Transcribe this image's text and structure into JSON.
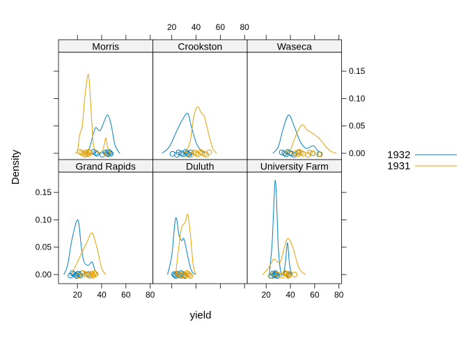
{
  "chart_data": {
    "type": "density",
    "xlabel": "yield",
    "ylabel": "Density",
    "xlim": [
      4.4,
      82.2
    ],
    "ylim": [
      -0.012,
      0.19
    ],
    "x_ticks": [
      20,
      40,
      60,
      80
    ],
    "x_tick_labels": [
      "20",
      "40",
      "60",
      "80"
    ],
    "y_ticks": [
      0.0,
      0.05,
      0.1,
      0.15
    ],
    "y_tick_labels": [
      "0.00",
      "0.05",
      "0.10",
      "0.15"
    ],
    "legend": {
      "placement": "right",
      "entries": [
        {
          "label": "1932",
          "color": "#0080c0"
        },
        {
          "label": "1931",
          "color": "#e69f00"
        }
      ]
    },
    "panels": [
      {
        "name": "Morris",
        "series": [
          {
            "name": "1932",
            "yield": [
              33.2,
              35.1,
              36.0,
              40.5,
              43.2,
              44.2,
              45.0,
              46.0,
              46.8,
              47.5
            ],
            "density_x": [
              27,
              30,
              33,
              35,
              37,
              39,
              42,
              45,
              48,
              51,
              55
            ],
            "density_y": [
              0,
              0.01,
              0.035,
              0.047,
              0.043,
              0.042,
              0.058,
              0.07,
              0.05,
              0.015,
              0
            ]
          },
          {
            "name": "1931",
            "yield": [
              21.9,
              23.5,
              25.0,
              26.2,
              27.0,
              27.8,
              28.6,
              29.5,
              30.2,
              44.5
            ],
            "density_x": [
              18,
              20,
              22,
              24,
              26,
              29,
              31,
              33,
              36,
              40,
              42,
              43.5,
              45,
              48
            ],
            "density_y": [
              0,
              0.005,
              0.035,
              0.05,
              0.1,
              0.144,
              0.09,
              0.02,
              0.003,
              0.003,
              0.015,
              0.028,
              0.01,
              0
            ]
          }
        ]
      },
      {
        "name": "Crookston",
        "series": [
          {
            "name": "1932",
            "yield": [
              20.6,
              24.2,
              25.6,
              28.0,
              29.5,
              31.2,
              32.5,
              33.5,
              34.4,
              35.7
            ],
            "density_x": [
              12,
              18,
              23.5,
              28,
              33,
              36,
              40,
              44,
              47
            ],
            "density_y": [
              0,
              0.012,
              0.038,
              0.058,
              0.073,
              0.05,
              0.02,
              0.005,
              0
            ]
          },
          {
            "name": "1931",
            "yield": [
              31.5,
              36.0,
              38.5,
              40.0,
              41.5,
              43.5,
              45.0,
              47.0,
              48.5,
              50.8
            ],
            "density_x": [
              31,
              35,
              38,
              41.2,
              44,
              47,
              51,
              54,
              57
            ],
            "density_y": [
              0,
              0.02,
              0.065,
              0.085,
              0.075,
              0.066,
              0.03,
              0.008,
              0
            ]
          }
        ]
      },
      {
        "name": "Waseca",
        "series": [
          {
            "name": "1932",
            "yield": [
              32.8,
              35.0,
              36.5,
              37.8,
              39.5,
              41.0,
              43.0,
              46.5,
              58.3,
              63.8
            ],
            "density_x": [
              25.5,
              30,
              34,
              38.6,
              43,
              48,
              53,
              58.7,
              62,
              66
            ],
            "density_y": [
              0,
              0.012,
              0.045,
              0.07,
              0.05,
              0.022,
              0.009,
              0.014,
              0.006,
              0
            ]
          },
          {
            "name": "1931",
            "yield": [
              37.6,
              44.0,
              46.0,
              47.5,
              49.0,
              50.5,
              54.5,
              56.0,
              58.5,
              64.5
            ],
            "density_x": [
              36,
              40,
              44,
              49.5,
              54,
              60,
              65,
              70,
              74,
              78
            ],
            "density_y": [
              0,
              0.006,
              0.03,
              0.052,
              0.042,
              0.034,
              0.024,
              0.01,
              0.003,
              0
            ]
          }
        ]
      },
      {
        "name": "Grand Rapids",
        "series": [
          {
            "name": "1932",
            "yield": [
              14.2,
              15.8,
              17.0,
              18.5,
              19.5,
              20.5,
              21.5,
              22.5,
              24.0,
              29.0
            ],
            "density_x": [
              8.8,
              12,
              15.5,
              20.3,
              23,
              25.3,
              29,
              32,
              34.5,
              36.8
            ],
            "density_y": [
              0,
              0.018,
              0.064,
              0.1,
              0.055,
              0.024,
              0.017,
              0.023,
              0.008,
              0
            ]
          },
          {
            "name": "1931",
            "yield": [
              21.0,
              24.5,
              26.5,
              29.0,
              30.5,
              31.5,
              32.5,
              33.0,
              34.0,
              35.0
            ],
            "density_x": [
              14.8,
              19,
              23.4,
              28,
              32,
              36,
              40,
              43.5
            ],
            "density_y": [
              0,
              0.018,
              0.039,
              0.06,
              0.076,
              0.05,
              0.012,
              0
            ]
          }
        ]
      },
      {
        "name": "Duluth",
        "series": [
          {
            "name": "1932",
            "yield": [
              21.9,
              22.5,
              23.2,
              24.5,
              25.5,
              26.5,
              27.5,
              28.5,
              29.5,
              31.0
            ],
            "density_x": [
              16.5,
              20,
              23.2,
              26,
              28,
              30,
              33,
              36,
              39.6
            ],
            "density_y": [
              0,
              0.035,
              0.103,
              0.072,
              0.062,
              0.065,
              0.035,
              0.008,
              0
            ]
          },
          {
            "name": "1931",
            "yield": [
              25.5,
              26.5,
              27.8,
              29.0,
              30.5,
              31.5,
              32.5,
              33.5,
              34.5,
              35.5
            ],
            "density_x": [
              23.2,
              25.5,
              28,
              31,
              33.2,
              35.5,
              37.5,
              39.6
            ],
            "density_y": [
              0,
              0.045,
              0.085,
              0.095,
              0.11,
              0.07,
              0.02,
              0
            ]
          }
        ]
      },
      {
        "name": "University Farm",
        "series": [
          {
            "name": "1932",
            "yield": [
              24.5,
              25.5,
              26.5,
              27.0,
              27.5,
              28.0,
              28.5,
              29.5,
              36.5,
              38.5
            ],
            "density_x": [
              22.6,
              25,
              27.6,
              30,
              32.2,
              34.5,
              36.2,
              37.6,
              39.2,
              40.9
            ],
            "density_y": [
              0,
              0.06,
              0.172,
              0.05,
              0.003,
              0.003,
              0.03,
              0.058,
              0.02,
              0
            ]
          },
          {
            "name": "1931",
            "yield": [
              23.5,
              27.0,
              29.5,
              33.0,
              35.5,
              37.0,
              38.0,
              38.5,
              39.5,
              43.5
            ],
            "density_x": [
              17.1,
              22,
              26.3,
              31.5,
              35,
              38,
              42,
              47,
              52.4
            ],
            "density_y": [
              0,
              0.012,
              0.028,
              0.022,
              0.05,
              0.066,
              0.05,
              0.012,
              0
            ]
          }
        ]
      }
    ]
  }
}
